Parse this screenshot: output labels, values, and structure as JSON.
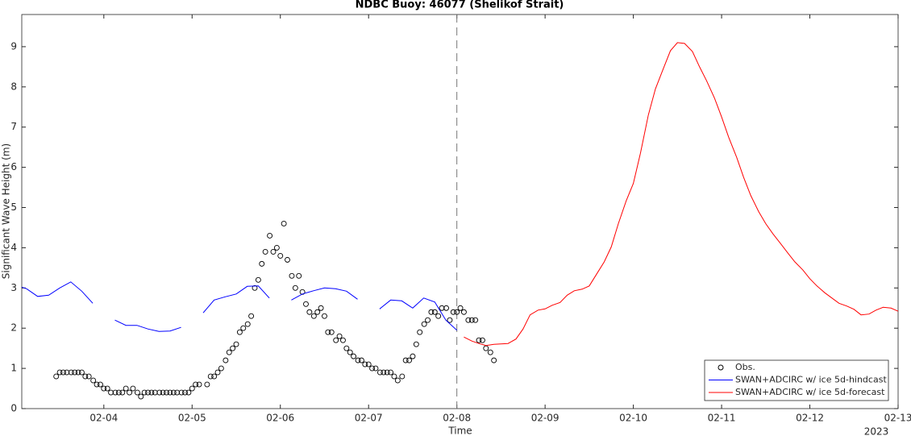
{
  "chart_data": {
    "type": "line",
    "title": "NDBC Buoy: 46077 (Shelikof Strait)",
    "x_label": "Time",
    "y_label": "Significant Wave Height (m)",
    "x_year_label": "2023",
    "xlim": [
      3.07,
      13.0
    ],
    "ylim": [
      0,
      9.8
    ],
    "xticks": [
      {
        "value": 4,
        "label": "02-04"
      },
      {
        "value": 5,
        "label": "02-05"
      },
      {
        "value": 6,
        "label": "02-06"
      },
      {
        "value": 7,
        "label": "02-07"
      },
      {
        "value": 8,
        "label": "02-08"
      },
      {
        "value": 9,
        "label": "02-09"
      },
      {
        "value": 10,
        "label": "02-10"
      },
      {
        "value": 11,
        "label": "02-11"
      },
      {
        "value": 12,
        "label": "02-12"
      },
      {
        "value": 13,
        "label": "02-13"
      }
    ],
    "yticks": [
      0,
      1,
      2,
      3,
      4,
      5,
      6,
      7,
      8,
      9
    ],
    "vline": 8,
    "legend": "lower right",
    "series": [
      {
        "name": "Obs.",
        "color": "#000000",
        "marker": "circle",
        "x": [
          3.46,
          3.5,
          3.54,
          3.58,
          3.63,
          3.67,
          3.71,
          3.75,
          3.79,
          3.83,
          3.88,
          3.92,
          3.96,
          4.0,
          4.04,
          4.08,
          4.13,
          4.17,
          4.21,
          4.25,
          4.29,
          4.33,
          4.38,
          4.42,
          4.46,
          4.5,
          4.54,
          4.58,
          4.63,
          4.67,
          4.71,
          4.75,
          4.79,
          4.83,
          4.88,
          4.92,
          4.96,
          5.0,
          5.04,
          5.08,
          5.17,
          5.21,
          5.25,
          5.29,
          5.33,
          5.38,
          5.42,
          5.46,
          5.5,
          5.54,
          5.58,
          5.63,
          5.67,
          5.71,
          5.75,
          5.79,
          5.83,
          5.88,
          5.92,
          5.96,
          6.0,
          6.04,
          6.08,
          6.13,
          6.17,
          6.21,
          6.25,
          6.29,
          6.33,
          6.38,
          6.42,
          6.46,
          6.5,
          6.54,
          6.58,
          6.63,
          6.67,
          6.71,
          6.75,
          6.79,
          6.83,
          6.88,
          6.92,
          6.96,
          7.0,
          7.04,
          7.08,
          7.13,
          7.17,
          7.21,
          7.25,
          7.29,
          7.33,
          7.38,
          7.42,
          7.46,
          7.5,
          7.54,
          7.58,
          7.63,
          7.67,
          7.71,
          7.75,
          7.79,
          7.83,
          7.88,
          7.92,
          7.96,
          8.0,
          8.04,
          8.08,
          8.13,
          8.17,
          8.21,
          8.25,
          8.29,
          8.33,
          8.38,
          8.42
        ],
        "values": [
          0.8,
          0.9,
          0.9,
          0.9,
          0.9,
          0.9,
          0.9,
          0.9,
          0.8,
          0.8,
          0.7,
          0.6,
          0.6,
          0.5,
          0.5,
          0.4,
          0.4,
          0.4,
          0.4,
          0.5,
          0.4,
          0.5,
          0.4,
          0.3,
          0.4,
          0.4,
          0.4,
          0.4,
          0.4,
          0.4,
          0.4,
          0.4,
          0.4,
          0.4,
          0.4,
          0.4,
          0.4,
          0.5,
          0.6,
          0.6,
          0.6,
          0.8,
          0.8,
          0.9,
          1.0,
          1.2,
          1.4,
          1.5,
          1.6,
          1.9,
          2.0,
          2.1,
          2.3,
          3.0,
          3.2,
          3.6,
          3.9,
          4.3,
          3.9,
          4.0,
          3.8,
          4.6,
          3.7,
          3.3,
          3.0,
          3.3,
          2.9,
          2.6,
          2.4,
          2.3,
          2.4,
          2.5,
          2.3,
          1.9,
          1.9,
          1.7,
          1.8,
          1.7,
          1.5,
          1.4,
          1.3,
          1.2,
          1.2,
          1.1,
          1.1,
          1.0,
          1.0,
          0.9,
          0.9,
          0.9,
          0.9,
          0.8,
          0.7,
          0.8,
          1.2,
          1.2,
          1.3,
          1.6,
          1.9,
          2.1,
          2.2,
          2.4,
          2.4,
          2.3,
          2.5,
          2.5,
          2.2,
          2.4,
          2.4,
          2.5,
          2.4,
          2.2,
          2.2,
          2.2,
          1.7,
          1.7,
          1.5,
          1.4,
          1.2
        ]
      },
      {
        "name": "SWAN+ADCIRC w/ ice 5d-hindcast",
        "color": "#0000ff",
        "x": [
          3.07,
          3.125,
          3.25,
          3.375,
          3.5,
          3.625,
          3.75,
          3.875,
          4.0,
          4.125,
          4.25,
          4.375,
          4.5,
          4.625,
          4.75,
          4.875,
          5.0,
          5.125,
          5.25,
          5.375,
          5.5,
          5.625,
          5.75,
          5.875,
          6.0,
          6.125,
          6.25,
          6.375,
          6.5,
          6.625,
          6.75,
          6.875,
          7.0,
          7.125,
          7.25,
          7.375,
          7.5,
          7.625,
          7.75,
          7.875,
          8.0
        ],
        "values": [
          3.02,
          2.98,
          2.79,
          2.82,
          3.0,
          3.15,
          2.92,
          2.62,
          null,
          2.2,
          2.07,
          2.07,
          1.98,
          1.92,
          1.93,
          2.02,
          null,
          2.38,
          2.7,
          2.78,
          2.85,
          3.04,
          3.05,
          2.75,
          null,
          2.7,
          2.85,
          2.93,
          3.0,
          2.98,
          2.92,
          2.72,
          null,
          2.48,
          2.7,
          2.68,
          2.5,
          2.75,
          2.65,
          2.2,
          1.95
        ]
      },
      {
        "name": "SWAN+ADCIRC w/ ice 5d-forecast",
        "color": "#ff0000",
        "x": [
          8.08,
          8.17,
          8.25,
          8.33,
          8.42,
          8.5,
          8.58,
          8.67,
          8.75,
          8.83,
          8.92,
          9.0,
          9.08,
          9.17,
          9.25,
          9.33,
          9.42,
          9.5,
          9.58,
          9.67,
          9.75,
          9.83,
          9.92,
          10.0,
          10.08,
          10.17,
          10.25,
          10.33,
          10.42,
          10.5,
          10.58,
          10.67,
          10.75,
          10.83,
          10.92,
          11.0,
          11.08,
          11.17,
          11.25,
          11.33,
          11.42,
          11.5,
          11.58,
          11.67,
          11.75,
          11.83,
          11.92,
          12.0,
          12.08,
          12.17,
          12.25,
          12.33,
          12.42,
          12.5,
          12.58,
          12.67,
          12.75,
          12.83,
          12.92,
          13.0
        ],
        "values": [
          1.78,
          1.68,
          1.62,
          1.57,
          1.6,
          1.61,
          1.62,
          1.73,
          1.98,
          2.33,
          2.45,
          2.48,
          2.57,
          2.64,
          2.82,
          2.93,
          2.97,
          3.05,
          3.33,
          3.65,
          4.02,
          4.6,
          5.17,
          5.6,
          6.35,
          7.3,
          7.95,
          8.4,
          8.9,
          9.1,
          9.08,
          8.88,
          8.5,
          8.15,
          7.72,
          7.25,
          6.75,
          6.25,
          5.75,
          5.3,
          4.9,
          4.6,
          4.35,
          4.1,
          3.87,
          3.65,
          3.45,
          3.23,
          3.05,
          2.88,
          2.75,
          2.62,
          2.55,
          2.47,
          2.33,
          2.35,
          2.45,
          2.52,
          2.5,
          2.42
        ]
      }
    ]
  }
}
